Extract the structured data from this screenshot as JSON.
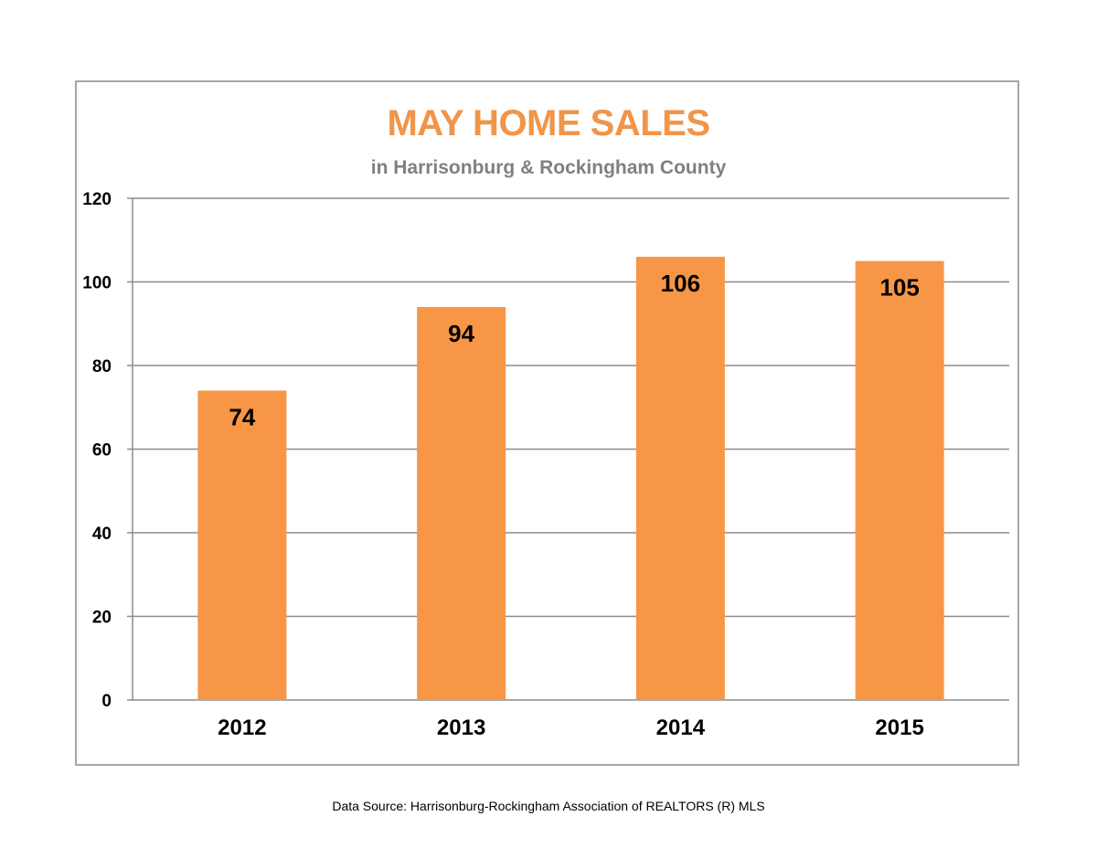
{
  "colors": {
    "bar": "#f79646",
    "title": "#f0954a",
    "subtitle": "#808080",
    "gridline": "#8c8c8c",
    "frame": "#a6a6a6"
  },
  "source_note": "Data Source: Harrisonburg-Rockingham Association of REALTORS (R) MLS",
  "chart_data": {
    "type": "bar",
    "title": "MAY HOME SALES",
    "subtitle": "in Harrisonburg & Rockingham County",
    "xlabel": "",
    "ylabel": "",
    "categories": [
      "2012",
      "2013",
      "2014",
      "2015"
    ],
    "values": [
      74,
      94,
      106,
      105
    ],
    "data_labels": [
      "74",
      "94",
      "106",
      "105"
    ],
    "ylim": [
      0,
      120
    ],
    "yticks": [
      0,
      20,
      40,
      60,
      80,
      100,
      120
    ],
    "grid": true,
    "legend": "none"
  }
}
